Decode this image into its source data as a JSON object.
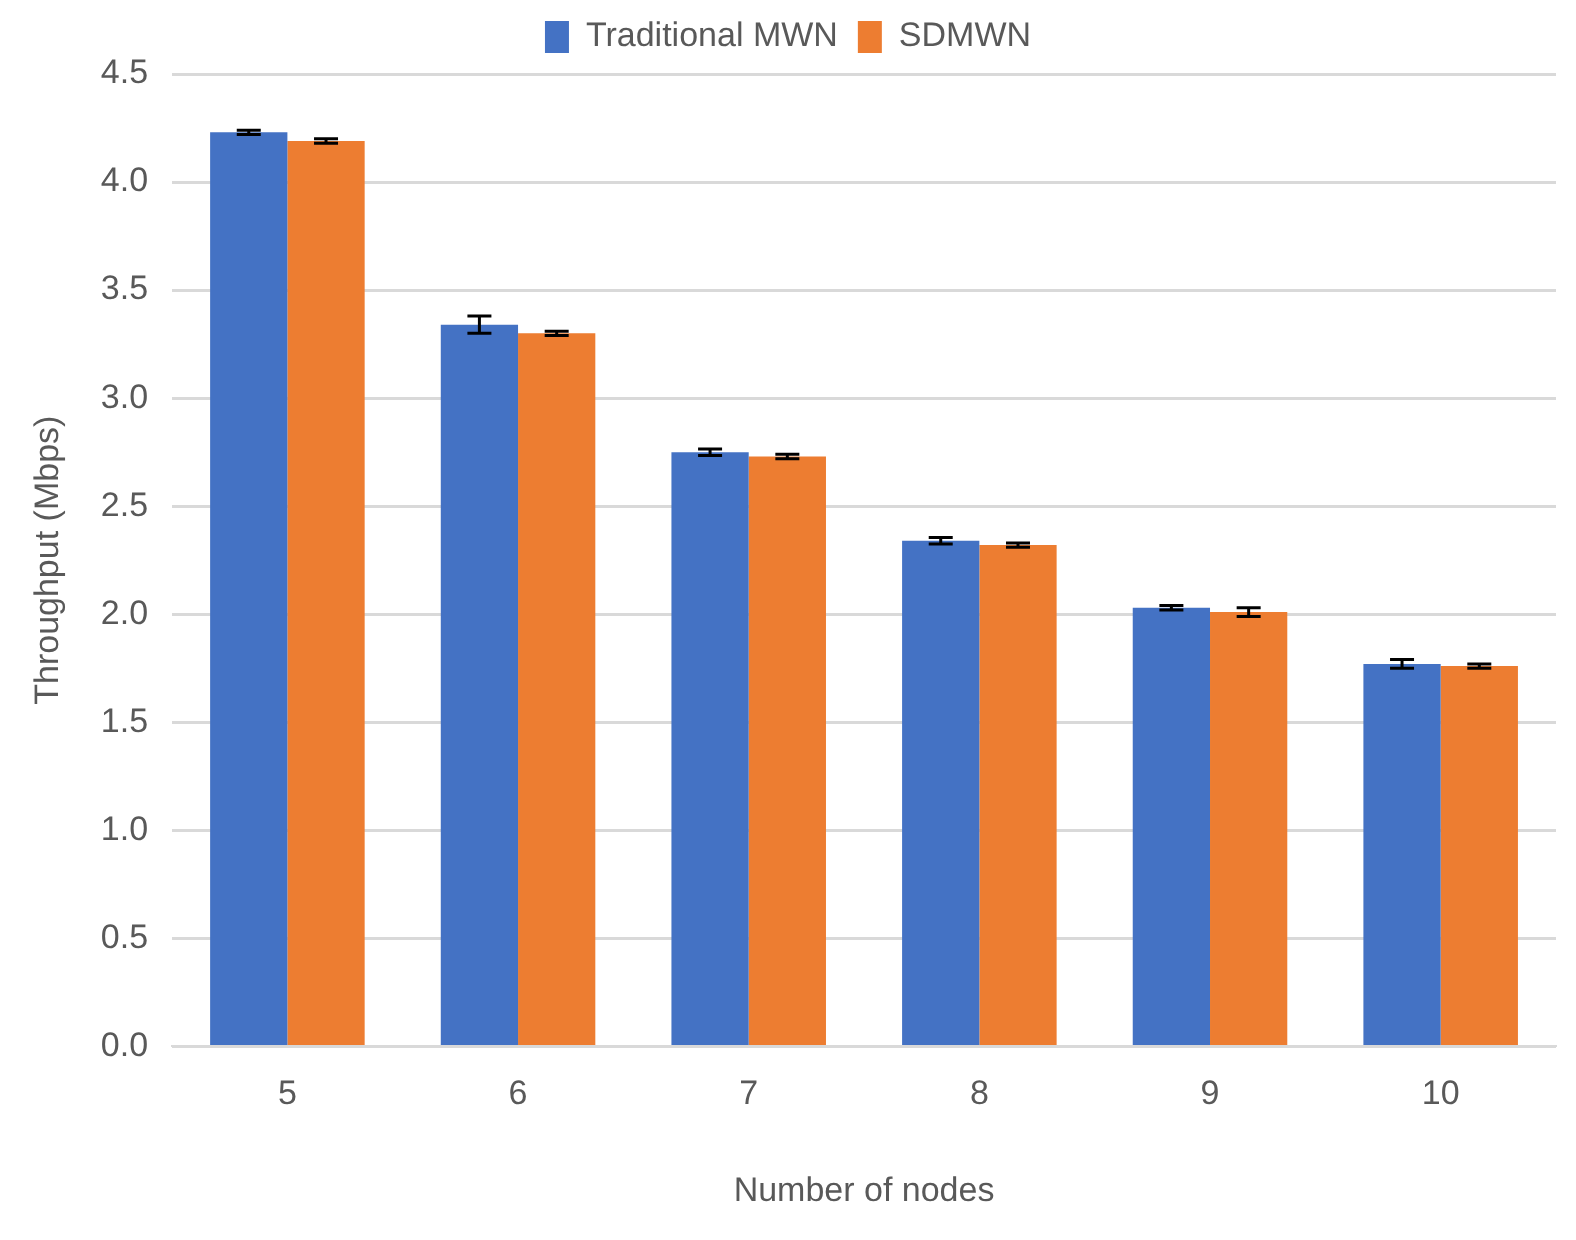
{
  "chart_data": {
    "type": "bar",
    "xlabel": "Number of nodes",
    "ylabel": "Throughput (Mbps)",
    "categories": [
      "5",
      "6",
      "7",
      "8",
      "9",
      "10"
    ],
    "series": [
      {
        "name": "Traditional MWN",
        "color": "#4472c4",
        "values": [
          4.23,
          3.34,
          2.75,
          2.34,
          2.03,
          1.77
        ],
        "errors": [
          0.01,
          0.04,
          0.015,
          0.015,
          0.01,
          0.02
        ]
      },
      {
        "name": "SDMWN",
        "color": "#ed7d31",
        "values": [
          4.19,
          3.3,
          2.73,
          2.32,
          2.01,
          1.76
        ],
        "errors": [
          0.01,
          0.01,
          0.01,
          0.01,
          0.02,
          0.01
        ]
      }
    ],
    "ylim": [
      0,
      4.5
    ],
    "yticks": [
      {
        "value": 0,
        "label": "0.0"
      },
      {
        "value": 0.5,
        "label": "0.5"
      },
      {
        "value": 1,
        "label": "1.0"
      },
      {
        "value": 1.5,
        "label": "1.5"
      },
      {
        "value": 2,
        "label": "2.0"
      },
      {
        "value": 2.5,
        "label": "2.5"
      },
      {
        "value": 3,
        "label": "3.0"
      },
      {
        "value": 3.5,
        "label": "3.5"
      },
      {
        "value": 4,
        "label": "4.0"
      },
      {
        "value": 4.5,
        "label": "4.5"
      }
    ],
    "grid": "y",
    "legend": "top"
  }
}
